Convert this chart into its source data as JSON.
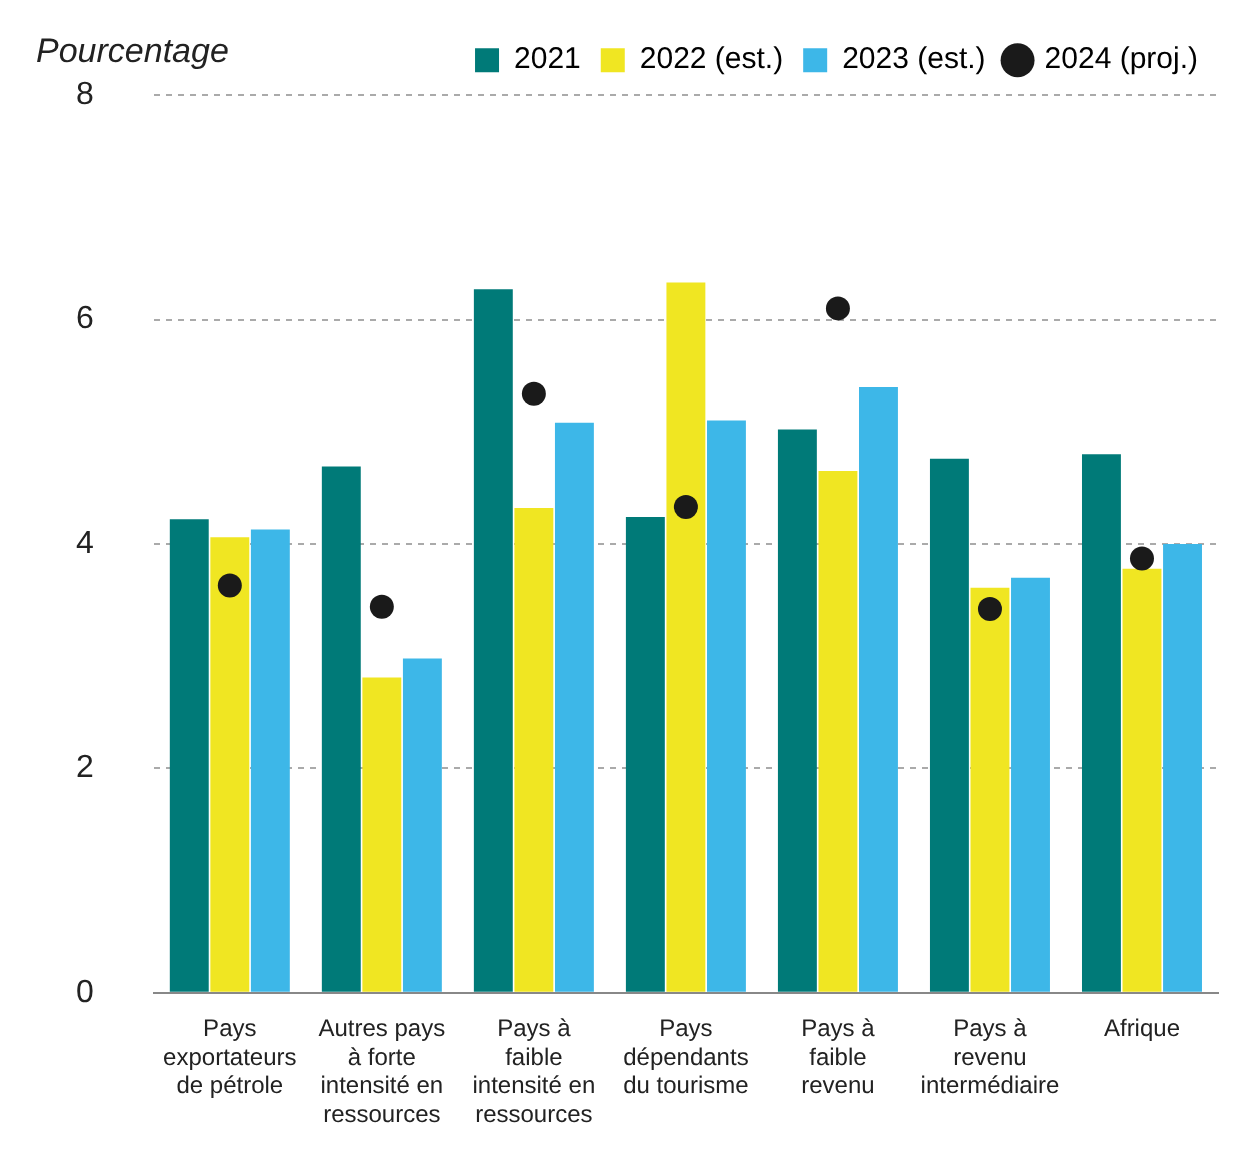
{
  "chart_data": {
    "type": "bar",
    "ylabel": "Pourcentage",
    "categories": [
      "Pays exportateurs de pétrole",
      "Autres pays à forte intensité en ressources",
      "Pays à faible intensité en ressources",
      "Pays dépendants du tourisme",
      "Pays à faible revenu",
      "Pays à revenu intermédiaire",
      "Afrique"
    ],
    "series": [
      {
        "name": "2021",
        "color": "#007a78",
        "values": [
          4.22,
          4.69,
          6.27,
          4.24,
          5.02,
          4.76,
          4.8
        ]
      },
      {
        "name": "2022 (est.)",
        "color": "#f0e622",
        "values": [
          4.06,
          2.81,
          4.32,
          6.33,
          4.65,
          3.61,
          3.78
        ]
      },
      {
        "name": "2023 (est.)",
        "color": "#3db7e8",
        "values": [
          4.13,
          2.98,
          5.08,
          5.1,
          5.4,
          3.7,
          4.0
        ]
      },
      {
        "name": "2024 (proj.)",
        "type": "scatter",
        "color": "#1a1a1a",
        "marker": "circle",
        "x": [
          "Pays exportateurs de pétrole",
          "Autres pays à forte intensité en ressources",
          "Pays à faible intensité en ressources",
          "Pays dépendants du tourisme",
          "Pays à faible revenu",
          "Pays à revenu intermédiaire",
          "Afrique"
        ],
        "values": [
          3.63,
          3.44,
          5.34,
          4.33,
          6.1,
          3.42,
          3.87
        ]
      }
    ],
    "ylim": [
      0,
      8
    ],
    "yticks": [
      0,
      2,
      4,
      6,
      8
    ],
    "grid": "y",
    "legend": "top right"
  }
}
